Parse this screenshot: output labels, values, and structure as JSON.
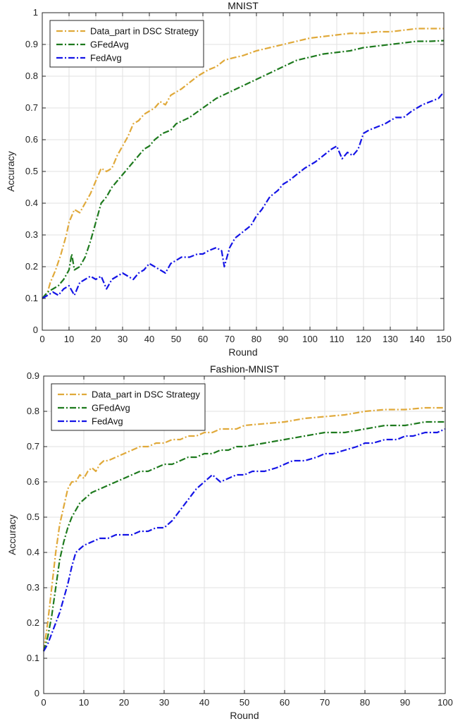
{
  "chart_data": [
    {
      "type": "line",
      "title": "MNIST",
      "xlabel": "Round",
      "ylabel": "Accuracy",
      "xlim": [
        0,
        150
      ],
      "ylim": [
        0,
        1
      ],
      "xticks": [
        0,
        10,
        20,
        30,
        40,
        50,
        60,
        70,
        80,
        90,
        100,
        110,
        120,
        130,
        140,
        150
      ],
      "yticks": [
        0,
        0.1,
        0.2,
        0.3,
        0.4,
        0.5,
        0.6,
        0.7,
        0.8,
        0.9,
        1
      ],
      "ytick_labels": [
        "0",
        "0.1",
        "0.2",
        "0.3",
        "0.4",
        "0.5",
        "0.6",
        "0.7",
        "0.8",
        "0.9",
        "1"
      ],
      "grid": true,
      "legend_position": "top-left",
      "series": [
        {
          "name": "Data_part in DSC Strategy",
          "color": "#E0A93A",
          "x": [
            0,
            2,
            3,
            5,
            7,
            9,
            10,
            12,
            14,
            16,
            18,
            20,
            22,
            24,
            26,
            28,
            30,
            32,
            34,
            36,
            38,
            40,
            42,
            44,
            46,
            48,
            50,
            52,
            55,
            58,
            60,
            62,
            65,
            68,
            70,
            75,
            80,
            85,
            90,
            95,
            100,
            105,
            110,
            115,
            120,
            125,
            130,
            135,
            140,
            145,
            150
          ],
          "y": [
            0.1,
            0.12,
            0.15,
            0.19,
            0.24,
            0.3,
            0.34,
            0.38,
            0.37,
            0.4,
            0.43,
            0.47,
            0.51,
            0.5,
            0.51,
            0.55,
            0.58,
            0.61,
            0.65,
            0.66,
            0.68,
            0.69,
            0.7,
            0.72,
            0.71,
            0.74,
            0.75,
            0.76,
            0.78,
            0.8,
            0.81,
            0.82,
            0.83,
            0.85,
            0.855,
            0.865,
            0.88,
            0.89,
            0.9,
            0.91,
            0.92,
            0.925,
            0.93,
            0.935,
            0.935,
            0.94,
            0.94,
            0.945,
            0.95,
            0.95,
            0.95
          ]
        },
        {
          "name": "GFedAvg",
          "color": "#1E7A1E",
          "x": [
            0,
            2,
            4,
            6,
            8,
            10,
            11,
            12,
            14,
            16,
            18,
            20,
            22,
            24,
            26,
            28,
            30,
            32,
            34,
            36,
            38,
            40,
            42,
            45,
            48,
            50,
            55,
            60,
            65,
            70,
            75,
            80,
            85,
            90,
            95,
            100,
            105,
            110,
            115,
            120,
            125,
            130,
            135,
            140,
            145,
            150
          ],
          "y": [
            0.1,
            0.12,
            0.13,
            0.14,
            0.16,
            0.19,
            0.24,
            0.19,
            0.2,
            0.23,
            0.28,
            0.34,
            0.4,
            0.42,
            0.45,
            0.47,
            0.49,
            0.51,
            0.53,
            0.55,
            0.57,
            0.58,
            0.6,
            0.62,
            0.63,
            0.65,
            0.67,
            0.7,
            0.73,
            0.75,
            0.77,
            0.79,
            0.81,
            0.83,
            0.85,
            0.86,
            0.87,
            0.875,
            0.88,
            0.89,
            0.895,
            0.9,
            0.905,
            0.91,
            0.91,
            0.912
          ]
        },
        {
          "name": "FedAvg",
          "color": "#1414E6",
          "x": [
            0,
            2,
            4,
            6,
            8,
            10,
            12,
            14,
            16,
            18,
            20,
            22,
            24,
            26,
            28,
            30,
            32,
            34,
            36,
            38,
            40,
            42,
            44,
            46,
            48,
            50,
            52,
            55,
            58,
            60,
            62,
            65,
            67,
            68,
            70,
            72,
            75,
            78,
            80,
            82,
            85,
            88,
            90,
            92,
            95,
            98,
            100,
            102,
            105,
            108,
            110,
            112,
            114,
            116,
            118,
            120,
            122,
            125,
            128,
            130,
            132,
            135,
            138,
            140,
            142,
            145,
            148,
            150
          ],
          "y": [
            0.1,
            0.11,
            0.12,
            0.11,
            0.13,
            0.14,
            0.11,
            0.15,
            0.16,
            0.17,
            0.16,
            0.17,
            0.13,
            0.16,
            0.17,
            0.18,
            0.17,
            0.16,
            0.18,
            0.19,
            0.21,
            0.2,
            0.19,
            0.18,
            0.21,
            0.22,
            0.23,
            0.23,
            0.24,
            0.24,
            0.25,
            0.26,
            0.25,
            0.2,
            0.26,
            0.29,
            0.31,
            0.33,
            0.36,
            0.38,
            0.42,
            0.44,
            0.46,
            0.47,
            0.49,
            0.51,
            0.52,
            0.53,
            0.55,
            0.57,
            0.58,
            0.54,
            0.56,
            0.55,
            0.57,
            0.62,
            0.63,
            0.64,
            0.65,
            0.66,
            0.67,
            0.67,
            0.69,
            0.7,
            0.71,
            0.72,
            0.73,
            0.75
          ]
        }
      ]
    },
    {
      "type": "line",
      "title": "Fashion-MNIST",
      "xlabel": "Round",
      "ylabel": "Accuracy",
      "xlim": [
        0,
        100
      ],
      "ylim": [
        0,
        0.9
      ],
      "xticks": [
        0,
        10,
        20,
        30,
        40,
        50,
        60,
        70,
        80,
        90,
        100
      ],
      "yticks": [
        0,
        0.1,
        0.2,
        0.3,
        0.4,
        0.5,
        0.6,
        0.7,
        0.8,
        0.9
      ],
      "ytick_labels": [
        "0",
        "0.1",
        "0.2",
        "0.3",
        "0.4",
        "0.5",
        "0.6",
        "0.7",
        "0.8",
        "0.9"
      ],
      "grid": true,
      "legend_position": "top-left",
      "series": [
        {
          "name": "Data_part in DSC Strategy",
          "color": "#E0A93A",
          "x": [
            0,
            1,
            2,
            3,
            4,
            5,
            6,
            7,
            8,
            9,
            10,
            11,
            12,
            13,
            14,
            15,
            16,
            18,
            20,
            22,
            24,
            26,
            28,
            30,
            32,
            34,
            36,
            38,
            40,
            42,
            44,
            46,
            48,
            50,
            55,
            60,
            65,
            70,
            75,
            80,
            85,
            90,
            95,
            100
          ],
          "y": [
            0.12,
            0.2,
            0.3,
            0.4,
            0.48,
            0.53,
            0.58,
            0.6,
            0.6,
            0.62,
            0.61,
            0.63,
            0.64,
            0.63,
            0.65,
            0.66,
            0.66,
            0.67,
            0.68,
            0.69,
            0.7,
            0.7,
            0.71,
            0.71,
            0.72,
            0.72,
            0.73,
            0.73,
            0.74,
            0.74,
            0.75,
            0.75,
            0.75,
            0.76,
            0.765,
            0.77,
            0.78,
            0.785,
            0.79,
            0.8,
            0.805,
            0.805,
            0.81,
            0.81
          ]
        },
        {
          "name": "GFedAvg",
          "color": "#1E7A1E",
          "x": [
            0,
            1,
            2,
            3,
            4,
            5,
            6,
            7,
            8,
            9,
            10,
            11,
            12,
            14,
            16,
            18,
            20,
            22,
            24,
            26,
            28,
            30,
            32,
            34,
            36,
            38,
            40,
            42,
            44,
            46,
            48,
            50,
            55,
            60,
            65,
            70,
            75,
            80,
            85,
            90,
            95,
            100
          ],
          "y": [
            0.12,
            0.16,
            0.22,
            0.3,
            0.38,
            0.43,
            0.47,
            0.5,
            0.52,
            0.54,
            0.55,
            0.56,
            0.57,
            0.58,
            0.59,
            0.6,
            0.61,
            0.62,
            0.63,
            0.63,
            0.64,
            0.65,
            0.65,
            0.66,
            0.67,
            0.67,
            0.68,
            0.68,
            0.69,
            0.69,
            0.7,
            0.7,
            0.71,
            0.72,
            0.73,
            0.74,
            0.74,
            0.75,
            0.76,
            0.76,
            0.77,
            0.77
          ]
        },
        {
          "name": "FedAvg",
          "color": "#1414E6",
          "x": [
            0,
            1,
            2,
            3,
            4,
            5,
            6,
            7,
            8,
            9,
            10,
            12,
            14,
            16,
            18,
            20,
            22,
            24,
            26,
            28,
            30,
            32,
            34,
            36,
            38,
            40,
            42,
            44,
            46,
            48,
            50,
            52,
            55,
            58,
            60,
            62,
            65,
            68,
            70,
            72,
            75,
            78,
            80,
            82,
            85,
            88,
            90,
            92,
            95,
            98,
            100
          ],
          "y": [
            0.12,
            0.14,
            0.17,
            0.2,
            0.23,
            0.27,
            0.31,
            0.36,
            0.4,
            0.41,
            0.42,
            0.43,
            0.44,
            0.44,
            0.45,
            0.45,
            0.45,
            0.46,
            0.46,
            0.47,
            0.47,
            0.49,
            0.52,
            0.55,
            0.58,
            0.6,
            0.62,
            0.6,
            0.61,
            0.62,
            0.62,
            0.63,
            0.63,
            0.64,
            0.65,
            0.66,
            0.66,
            0.67,
            0.68,
            0.68,
            0.69,
            0.7,
            0.71,
            0.71,
            0.72,
            0.72,
            0.73,
            0.73,
            0.74,
            0.74,
            0.75
          ]
        }
      ]
    }
  ]
}
